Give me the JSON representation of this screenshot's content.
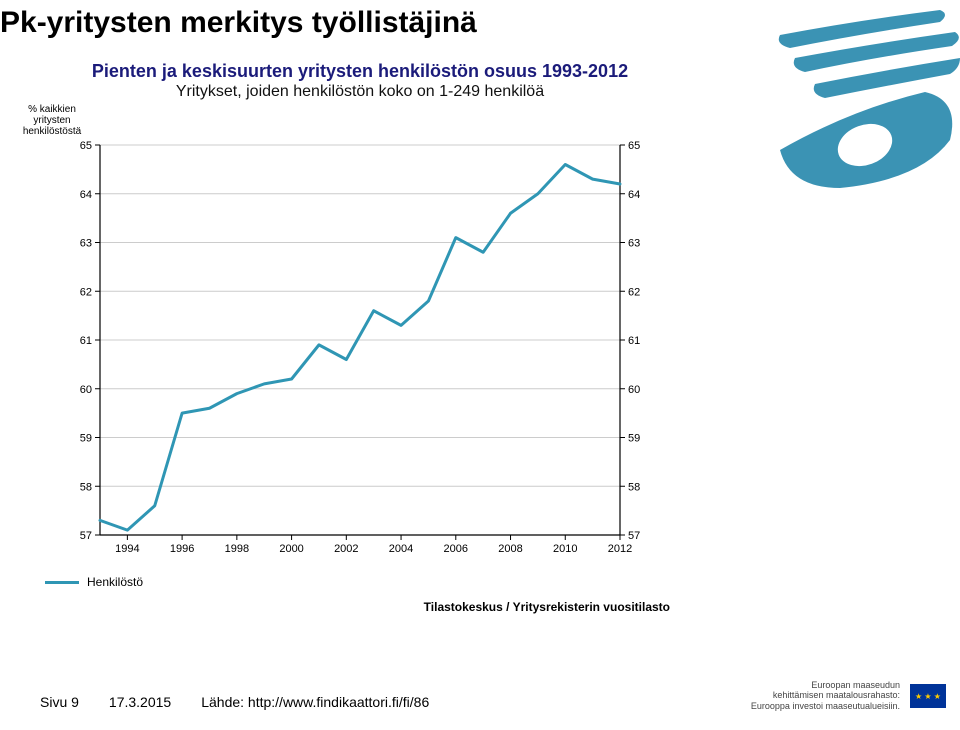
{
  "title": "Pk-yritysten merkitys työllistäjinä",
  "chart": {
    "type": "line",
    "title": "Pienten ja keskisuurten yritysten henkilöstön osuus 1993-2012",
    "subtitle": "Yritykset, joiden henkilöstön koko on 1-249 henkilöä",
    "y_axis_title": "% kaikkien yritysten henkilöstöstä",
    "ylim": [
      57,
      65
    ],
    "y_tick_step": 1,
    "x_years": [
      1993,
      1994,
      1995,
      1996,
      1997,
      1998,
      1999,
      2000,
      2001,
      2002,
      2003,
      2004,
      2005,
      2006,
      2007,
      2008,
      2009,
      2010,
      2011,
      2012
    ],
    "x_ticks": [
      1994,
      1996,
      1998,
      2000,
      2002,
      2004,
      2006,
      2008,
      2010,
      2012
    ],
    "values": [
      57.3,
      57.1,
      57.6,
      59.5,
      59.6,
      59.9,
      60.1,
      60.2,
      60.9,
      60.6,
      61.6,
      61.3,
      61.8,
      63.1,
      62.8,
      63.6,
      64.0,
      64.6,
      64.3,
      64.2
    ],
    "line_color": "#2f96b4",
    "line_width": 3,
    "grid_color": "#cccccc",
    "axis_color": "#000000",
    "background": "#ffffff",
    "legend_label": "Henkilöstö",
    "source_text": "Tilastokeskus / Yritysrekisterin vuositilasto",
    "tick_font_size": 11
  },
  "footer": {
    "page": "Sivu 9",
    "date": "17.3.2015",
    "link": "Lähde: http://www.findikaattori.fi/fi/86"
  },
  "sponsor": {
    "line1": "Euroopan maaseudun",
    "line2": "kehittämisen maatalousrahasto:",
    "line3": "Eurooppa investoi maaseutualueisiin."
  }
}
